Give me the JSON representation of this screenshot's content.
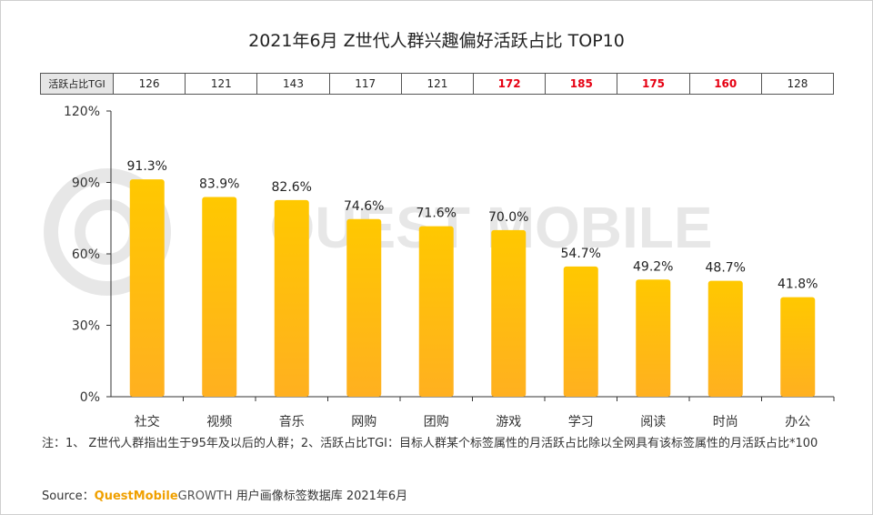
{
  "title": "2021年6月 Z世代人群兴趣偏好活跃占比 TOP10",
  "watermark": "QUEST MOBILE",
  "tgi_row": {
    "header": "活跃占比TGI",
    "values": [
      {
        "text": "126",
        "highlight": false
      },
      {
        "text": "121",
        "highlight": false
      },
      {
        "text": "143",
        "highlight": false
      },
      {
        "text": "117",
        "highlight": false
      },
      {
        "text": "121",
        "highlight": false
      },
      {
        "text": "172",
        "highlight": true
      },
      {
        "text": "185",
        "highlight": true
      },
      {
        "text": "175",
        "highlight": true
      },
      {
        "text": "160",
        "highlight": true
      },
      {
        "text": "128",
        "highlight": false
      }
    ],
    "highlight_color": "#e60012"
  },
  "chart_data": {
    "type": "bar",
    "categories": [
      "社交",
      "视频",
      "音乐",
      "网购",
      "团购",
      "游戏",
      "学习",
      "阅读",
      "时尚",
      "办公"
    ],
    "values": [
      91.3,
      83.9,
      82.6,
      74.6,
      71.6,
      70.0,
      54.7,
      49.2,
      48.7,
      41.8
    ],
    "value_labels": [
      "91.3%",
      "83.9%",
      "82.6%",
      "74.6%",
      "71.6%",
      "70.0%",
      "54.7%",
      "49.2%",
      "48.7%",
      "41.8%"
    ],
    "y_ticks": [
      0,
      30,
      60,
      90,
      120
    ],
    "y_tick_labels": [
      "0%",
      "30%",
      "60%",
      "90%",
      "120%"
    ],
    "ylim": [
      0,
      120
    ],
    "grid": false,
    "bar_color_top": "#ffc800",
    "bar_color_bottom": "#ffb020"
  },
  "note": "注：1、 Z世代人群指出生于95年及以后的人群；2、活跃占比TGI：目标人群某个标签属性的月活跃占比除以全网具有该标签属性的月活跃占比*100",
  "source": {
    "prefix": "Source：",
    "brand": "QuestMobile",
    "growth": "GROWTH",
    "rest": " 用户画像标签数据库 2021年6月"
  }
}
